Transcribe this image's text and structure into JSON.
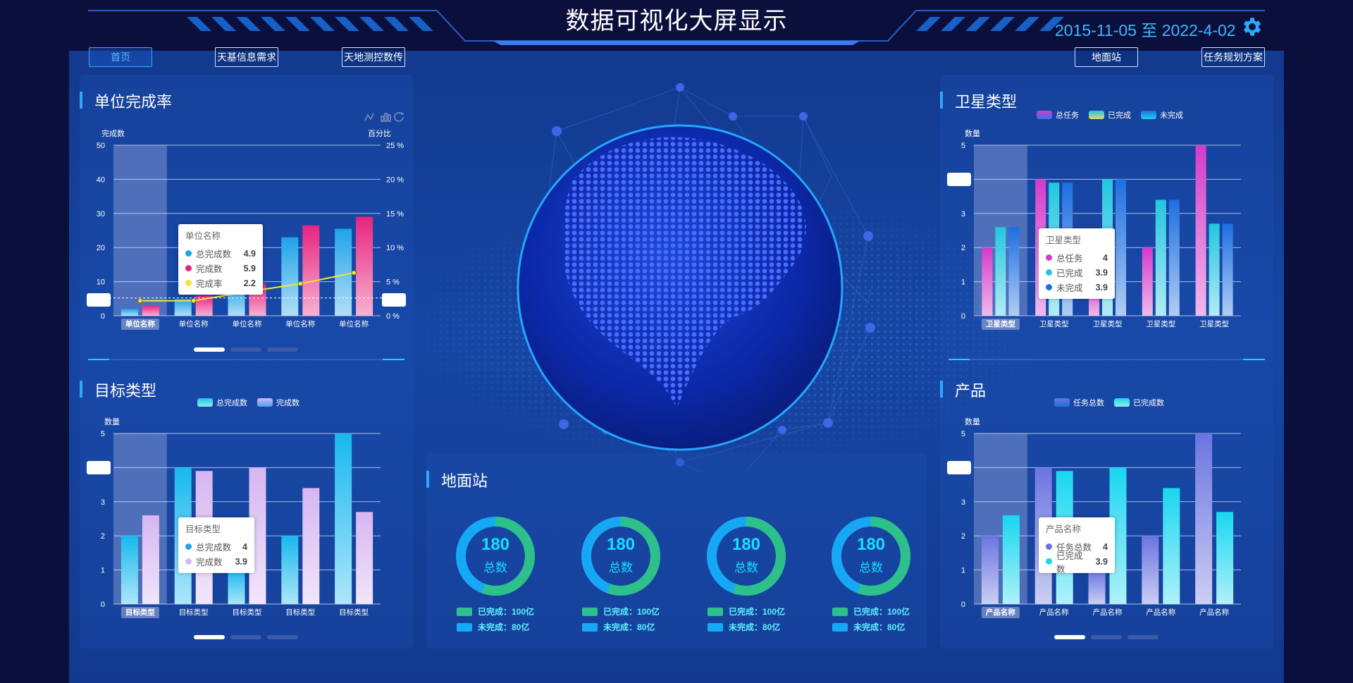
{
  "header": {
    "title": "数据可视化大屏显示",
    "date_range": "2015-11-05 至 2022-4-02",
    "settings_icon": "gear-icon"
  },
  "nav": {
    "items": [
      {
        "label": "首页",
        "active": true
      },
      {
        "label": "天基信息需求",
        "active": false
      },
      {
        "label": "天地测控数传",
        "active": false
      },
      {
        "label": "地面站",
        "active": false
      },
      {
        "label": "任务规划方案",
        "active": false
      }
    ]
  },
  "colors": {
    "accent": "#2ea7ff",
    "cyan": "#15e0ff",
    "green": "#2ec08a",
    "pink": "#e8237f",
    "yellow": "#f3e33a"
  },
  "panels": {
    "unit_rate": {
      "title": "单位完成率",
      "ylabel_left": "完成数",
      "ylabel_right": "百分比",
      "toolbar_icons": [
        "line-chart-icon",
        "bar-chart-icon",
        "refresh-icon"
      ],
      "tooltip": {
        "title": "单位名称",
        "rows": [
          {
            "name": "总完成数",
            "value": "4.9",
            "color": "#1fa3e8"
          },
          {
            "name": "完成数",
            "value": "5.9",
            "color": "#e8237f"
          },
          {
            "name": "完成率",
            "value": "2.2",
            "color": "#f3e33a"
          }
        ]
      }
    },
    "target_type": {
      "title": "目标类型",
      "ylabel": "数量",
      "tooltip": {
        "title": "目标类型",
        "rows": [
          {
            "name": "总完成数",
            "value": "4",
            "color": "#1fa3e8"
          },
          {
            "name": "完成数",
            "value": "3.9",
            "color": "#d6b6f2"
          }
        ]
      }
    },
    "satellite_type": {
      "title": "卫星类型",
      "ylabel": "数量",
      "tooltip": {
        "title": "卫星类型",
        "rows": [
          {
            "name": "总任务",
            "value": "4",
            "color": "#d43bc9"
          },
          {
            "name": "已完成",
            "value": "3.9",
            "color": "#22c6e0"
          },
          {
            "name": "未完成",
            "value": "3.9",
            "color": "#1d6fe0"
          }
        ]
      }
    },
    "product": {
      "title": "产品",
      "ylabel": "数量",
      "tooltip": {
        "title": "产品名称",
        "rows": [
          {
            "name": "任务总数",
            "value": "4",
            "color": "#6b74e0"
          },
          {
            "name": "已完成数",
            "value": "3.9",
            "color": "#19d6f0"
          }
        ]
      }
    },
    "ground_station": {
      "title": "地面站",
      "donuts": [
        {
          "number": "180",
          "label": "总数",
          "done_label": "已完成：100亿",
          "undone_label": "未完成：80亿",
          "done_value": 100,
          "undone_value": 80
        },
        {
          "number": "180",
          "label": "总数",
          "done_label": "已完成：100亿",
          "undone_label": "未完成：80亿",
          "done_value": 100,
          "undone_value": 80
        },
        {
          "number": "180",
          "label": "总数",
          "done_label": "已完成：100亿",
          "undone_label": "未完成：80亿",
          "done_value": 100,
          "undone_value": 80
        },
        {
          "number": "180",
          "label": "总数",
          "done_label": "已完成：100亿",
          "undone_label": "未完成：80亿",
          "done_value": 100,
          "undone_value": 80
        }
      ]
    }
  },
  "chart_data": [
    {
      "id": "unit",
      "type": "bar",
      "title": "单位完成率",
      "categories": [
        "单位名称",
        "单位名称",
        "单位名称",
        "单位名称",
        "单位名称"
      ],
      "ylabel": "完成数",
      "ylabel_right": "百分比",
      "ylim": [
        0,
        50
      ],
      "yticks": [
        0,
        10,
        20,
        30,
        40,
        50
      ],
      "ylim_right": [
        0,
        25
      ],
      "yticks_right": [
        "0 %",
        "5 %",
        "10 %",
        "15 %",
        "20 %",
        "25 %"
      ],
      "series": [
        {
          "name": "总完成数",
          "type": "bar",
          "values": [
            2,
            4.9,
            9,
            23,
            25.5
          ],
          "color": "#1fa3e8"
        },
        {
          "name": "完成数",
          "type": "bar",
          "values": [
            3,
            5.9,
            9.5,
            26.5,
            29
          ],
          "color": "#e8237f"
        },
        {
          "name": "完成率",
          "type": "line",
          "axis": "right",
          "values": [
            2.2,
            2.2,
            3.5,
            4.7,
            6.3
          ],
          "color": "#f3e33a"
        }
      ],
      "highlight_index": 0
    },
    {
      "id": "target",
      "type": "bar",
      "title": "目标类型",
      "categories": [
        "目标类型",
        "目标类型",
        "目标类型",
        "目标类型",
        "目标类型"
      ],
      "ylabel": "数量",
      "ylim": [
        0,
        5
      ],
      "yticks": [
        0,
        1,
        2,
        3,
        4,
        5
      ],
      "series": [
        {
          "name": "总完成数",
          "values": [
            2,
            4,
            1,
            2,
            5
          ],
          "color": "#17b8ee"
        },
        {
          "name": "完成数",
          "values": [
            2.6,
            3.9,
            4,
            3.4,
            2.7
          ],
          "color": "#d6b6f2"
        }
      ],
      "highlight_index": 0
    },
    {
      "id": "satellite",
      "type": "bar",
      "title": "卫星类型",
      "categories": [
        "卫星类型",
        "卫星类型",
        "卫星类型",
        "卫星类型",
        "卫星类型"
      ],
      "ylabel": "数量",
      "ylim": [
        0,
        5
      ],
      "yticks": [
        0,
        1,
        2,
        3,
        4,
        5
      ],
      "series": [
        {
          "name": "总任务",
          "values": [
            2,
            4,
            1,
            2,
            5
          ],
          "color": "#d43bc9"
        },
        {
          "name": "已完成",
          "values": [
            2.6,
            3.9,
            4,
            3.4,
            2.7
          ],
          "color": "#22c6e0"
        },
        {
          "name": "未完成",
          "values": [
            2.6,
            3.9,
            4,
            3.4,
            2.7
          ],
          "color": "#1d6fe0"
        }
      ],
      "highlight_index": 0
    },
    {
      "id": "product",
      "type": "bar",
      "title": "产品",
      "categories": [
        "产品名称",
        "产品名称",
        "产品名称",
        "产品名称",
        "产品名称"
      ],
      "ylabel": "数量",
      "ylim": [
        0,
        5
      ],
      "yticks": [
        0,
        1,
        2,
        3,
        4,
        5
      ],
      "series": [
        {
          "name": "任务总数",
          "values": [
            2,
            4,
            1,
            2,
            5
          ],
          "color": "#6b74e0"
        },
        {
          "name": "已完成数",
          "values": [
            2.6,
            3.9,
            4,
            3.4,
            2.7
          ],
          "color": "#19d6f0"
        }
      ],
      "highlight_index": 0
    }
  ]
}
